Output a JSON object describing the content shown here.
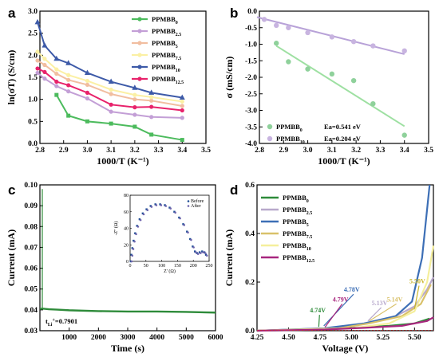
{
  "chart_data": [
    {
      "panel": "a",
      "type": "line",
      "xlabel": "1000/T (K⁻¹)",
      "ylabel": "ln(σT) (S/cm)",
      "xlim": [
        2.8,
        3.5
      ],
      "ylim": [
        0.0,
        3.0
      ],
      "xticks": [
        "2.8",
        "2.9",
        "3.0",
        "3.1",
        "3.2",
        "3.3",
        "3.4",
        "3.5"
      ],
      "yticks": [
        "0.0",
        "0.5",
        "1.0",
        "1.5",
        "2.0",
        "2.5",
        "3.0"
      ],
      "legend_position": "top-right",
      "series": [
        {
          "name": "PPMBB0",
          "base": "PPMBB",
          "sub": "0",
          "color": "#4cbb5d",
          "x": [
            2.87,
            2.92,
            3.0,
            3.1,
            3.2,
            3.27,
            3.4
          ],
          "y": [
            1.1,
            0.63,
            0.5,
            0.45,
            0.38,
            0.2,
            0.08
          ]
        },
        {
          "name": "PPMBB2.5",
          "base": "PPMBB",
          "sub": "2.5",
          "color": "#c39fd6",
          "x": [
            2.79,
            2.82,
            2.87,
            2.92,
            3.0,
            3.1,
            3.2,
            3.27,
            3.4
          ],
          "y": [
            1.6,
            1.47,
            1.3,
            1.18,
            1.02,
            0.72,
            0.65,
            0.6,
            0.58
          ]
        },
        {
          "name": "PPMBB5",
          "base": "PPMBB",
          "sub": "5",
          "color": "#f1bea0",
          "x": [
            2.79,
            2.82,
            2.87,
            2.92,
            3.0,
            3.1,
            3.2,
            3.27,
            3.4
          ],
          "y": [
            1.88,
            1.78,
            1.58,
            1.44,
            1.33,
            1.12,
            1.0,
            0.97,
            0.85
          ]
        },
        {
          "name": "PPMBB7.5",
          "base": "PPMBB",
          "sub": "7.5",
          "color": "#fbf0a4",
          "x": [
            2.79,
            2.82,
            2.87,
            2.92,
            3.0,
            3.1,
            3.2,
            3.27,
            3.4
          ],
          "y": [
            2.08,
            1.92,
            1.68,
            1.55,
            1.42,
            1.22,
            1.1,
            1.05,
            0.95
          ]
        },
        {
          "name": "PPMBB10",
          "base": "PPMBB",
          "sub": "10",
          "color": "#3d5aa8",
          "x": [
            2.79,
            2.82,
            2.87,
            2.92,
            3.0,
            3.1,
            3.2,
            3.27,
            3.4
          ],
          "y": [
            2.75,
            2.22,
            1.92,
            1.82,
            1.6,
            1.4,
            1.26,
            1.15,
            1.04
          ]
        },
        {
          "name": "PPMBB12.5",
          "base": "PPMBB",
          "sub": "12.5",
          "color": "#e8226b",
          "x": [
            2.79,
            2.82,
            2.87,
            2.92,
            3.0,
            3.1,
            3.2,
            3.27,
            3.4
          ],
          "y": [
            1.7,
            1.62,
            1.4,
            1.32,
            1.15,
            0.88,
            0.82,
            0.83,
            0.75
          ]
        }
      ]
    },
    {
      "panel": "b",
      "type": "scatter",
      "xlabel": "1000/T (K⁻¹)",
      "ylabel": "σ (mS/cm)",
      "xlim": [
        2.8,
        3.5
      ],
      "ylim": [
        -4.0,
        0.0
      ],
      "xticks": [
        "2.8",
        "2.9",
        "3.0",
        "3.1",
        "3.2",
        "3.3",
        "3.4",
        "3.5"
      ],
      "yticks": [
        "0.0",
        "-0.5",
        "-1.0",
        "-1.5",
        "-2.0",
        "-2.5",
        "-3.0",
        "-3.5",
        "-4.0"
      ],
      "legend_position": "bottom-left",
      "series": [
        {
          "name": "PPMBB0",
          "base": "PPMBB",
          "sub": "0",
          "annotation": "Ea=0.541 eV",
          "color": "#8fd19b",
          "line_color": "#9ee0a2",
          "x": [
            2.87,
            2.92,
            3.0,
            3.1,
            3.19,
            3.27,
            3.4
          ],
          "y": [
            -0.97,
            -1.53,
            -1.75,
            -1.9,
            -2.1,
            -2.8,
            -3.75
          ],
          "fit": [
            [
              2.87,
              -1.05
            ],
            [
              3.4,
              -3.48
            ]
          ]
        },
        {
          "name": "PPMBB10",
          "base": "PPMBB",
          "sub": "10",
          "annotation": "Ea=0.204 eV",
          "color": "#c8b4e0",
          "line_color": "#b8a2d8",
          "x": [
            2.82,
            2.87,
            2.92,
            3.0,
            3.1,
            3.19,
            3.27,
            3.4
          ],
          "y": [
            -0.25,
            -0.43,
            -0.5,
            -0.65,
            -0.78,
            -0.92,
            -1.05,
            -1.2
          ],
          "fit": [
            [
              2.79,
              -0.18
            ],
            [
              3.4,
              -1.3
            ]
          ]
        }
      ]
    },
    {
      "panel": "c",
      "type": "line",
      "xlabel": "Time (s)",
      "ylabel": "Current (mA)",
      "xlim": [
        0,
        6000
      ],
      "ylim": [
        0.03,
        0.1
      ],
      "xticks": [
        "1000",
        "2000",
        "3000",
        "4000",
        "5000",
        "6000"
      ],
      "yticks": [
        "0.03",
        "0.04",
        "0.05",
        "0.06",
        "0.07",
        "0.08",
        "0.09",
        "0.10"
      ],
      "annotation": {
        "text": "t",
        "sub": "Li",
        "sup": "+",
        "tail": "=0.7901"
      },
      "series": [
        {
          "name": "current",
          "color": "#2e8b3a",
          "x": [
            0,
            100,
            300,
            600,
            1000,
            2000,
            3000,
            4000,
            5000,
            6000
          ],
          "y": [
            0.0405,
            0.0406,
            0.0403,
            0.0401,
            0.0398,
            0.0394,
            0.0392,
            0.0392,
            0.039,
            0.0387
          ]
        }
      ],
      "inset": {
        "type": "scatter",
        "xlabel": "Z' (Ω)",
        "ylabel": "-Z'' (Ω)",
        "xlim": [
          0,
          250
        ],
        "ylim": [
          0,
          80
        ],
        "xticks": [
          "0",
          "50",
          "100",
          "150",
          "200",
          "250"
        ],
        "yticks": [
          "0",
          "20",
          "40",
          "60",
          "80"
        ],
        "legend": [
          "Before",
          "After"
        ],
        "series": [
          {
            "name": "Before",
            "color": "#1f4e96",
            "x": [
              2,
              4,
              7,
              11,
              16,
              22,
              30,
              40,
              52,
              65,
              80,
              95,
              110,
              125,
              140,
              155,
              168,
              180,
              190,
              198,
              205,
              212,
              220,
              228,
              235,
              240
            ],
            "y": [
              0,
              8,
              16,
              25,
              34,
              43,
              51,
              58,
              63,
              67,
              69,
              69,
              68,
              65,
              60,
              53,
              45,
              36,
              27,
              18,
              12,
              10,
              11,
              12,
              11,
              8
            ]
          },
          {
            "name": "After",
            "color": "#6e64ad",
            "x": [
              5,
              7,
              10,
              14,
              19,
              25,
              33,
              43,
              55,
              68,
              83,
              98,
              113,
              128,
              143,
              158,
              171,
              183,
              193,
              201,
              208,
              215,
              223,
              231,
              238,
              243
            ],
            "y": [
              0,
              7,
              15,
              24,
              33,
              42,
              50,
              57,
              62,
              66,
              68,
              68,
              67,
              64,
              59,
              52,
              44,
              35,
              26,
              17,
              11,
              9,
              10,
              11,
              10,
              7
            ]
          }
        ]
      }
    },
    {
      "panel": "d",
      "type": "line",
      "xlabel": "Voltage (V)",
      "ylabel": "Current (mA)",
      "xlim": [
        4.25,
        5.65
      ],
      "ylim": [
        0.0,
        0.6
      ],
      "xticks": [
        "4.25",
        "4.50",
        "4.75",
        "5.00",
        "5.25",
        "5.50"
      ],
      "yticks": [
        "0.0",
        "0.2",
        "0.4",
        "0.6"
      ],
      "legend_position": "top-left",
      "series": [
        {
          "name": "PPMBB0",
          "base": "PPMBB",
          "sub": "0",
          "color": "#2e8b3a",
          "onset": "4.74V",
          "points": [
            [
              4.25,
              0.0
            ],
            [
              4.6,
              0.003
            ],
            [
              4.74,
              0.006
            ],
            [
              5.0,
              0.012
            ],
            [
              5.3,
              0.02
            ],
            [
              5.5,
              0.03
            ],
            [
              5.62,
              0.05
            ]
          ]
        },
        {
          "name": "PPMBB2.5",
          "base": "PPMBB",
          "sub": "2.5",
          "color": "#b8a9cc",
          "onset": "5.13V",
          "points": [
            [
              4.25,
              0.0
            ],
            [
              4.8,
              0.01
            ],
            [
              5.13,
              0.03
            ],
            [
              5.35,
              0.06
            ],
            [
              5.5,
              0.1
            ],
            [
              5.6,
              0.17
            ],
            [
              5.65,
              0.22
            ]
          ]
        },
        {
          "name": "PPMBB5",
          "base": "PPMBB",
          "sub": "5",
          "color": "#3d6fb6",
          "onset": "4.78V",
          "points": [
            [
              4.25,
              0.0
            ],
            [
              4.78,
              0.01
            ],
            [
              5.1,
              0.03
            ],
            [
              5.35,
              0.06
            ],
            [
              5.48,
              0.12
            ],
            [
              5.56,
              0.3
            ],
            [
              5.62,
              0.6
            ]
          ]
        },
        {
          "name": "PPMBB7.5",
          "base": "PPMBB",
          "sub": "7.5",
          "color": "#d9c16a",
          "onset": "5.14V",
          "points": [
            [
              4.25,
              0.0
            ],
            [
              4.9,
              0.01
            ],
            [
              5.14,
              0.03
            ],
            [
              5.4,
              0.06
            ],
            [
              5.55,
              0.11
            ],
            [
              5.63,
              0.19
            ]
          ]
        },
        {
          "name": "PPMBB10",
          "base": "PPMBB",
          "sub": "10",
          "color": "#f5ef9c",
          "onset": "5.50V",
          "points": [
            [
              4.25,
              0.0
            ],
            [
              5.0,
              0.01
            ],
            [
              5.3,
              0.03
            ],
            [
              5.5,
              0.08
            ],
            [
              5.6,
              0.2
            ],
            [
              5.65,
              0.35
            ]
          ]
        },
        {
          "name": "PPMBB12.5",
          "base": "PPMBB",
          "sub": "12.5",
          "color": "#a8267e",
          "onset": "4.79V",
          "points": [
            [
              4.25,
              0.0
            ],
            [
              4.79,
              0.005
            ],
            [
              5.1,
              0.012
            ],
            [
              5.4,
              0.02
            ],
            [
              5.6,
              0.04
            ],
            [
              5.65,
              0.055
            ]
          ]
        }
      ]
    }
  ]
}
